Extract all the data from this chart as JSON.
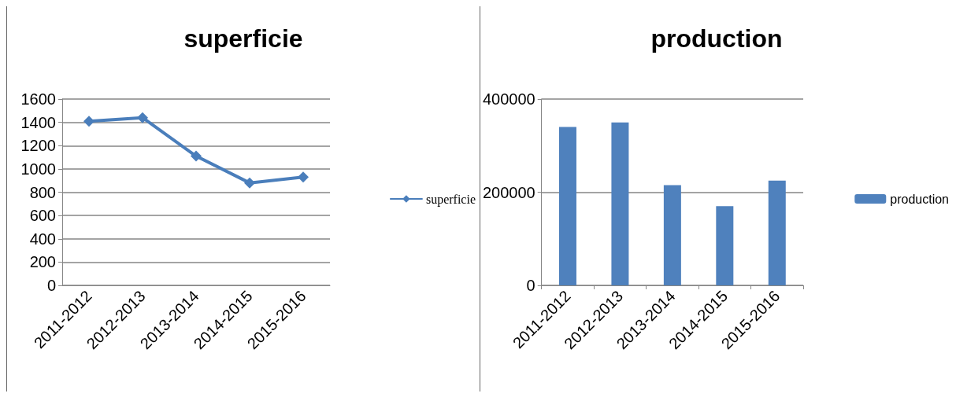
{
  "chart_data": [
    {
      "type": "line",
      "title": "superficie",
      "categories": [
        "2011-2012",
        "2012-2013",
        "2013-2014",
        "2014-2015",
        "2015-2016"
      ],
      "series": [
        {
          "name": "superficie",
          "color": "#4a7ebb",
          "values": [
            1410,
            1440,
            1110,
            880,
            930
          ]
        }
      ],
      "ylim": [
        0,
        1600
      ],
      "yticks": [
        0,
        200,
        400,
        600,
        800,
        1000,
        1200,
        1400,
        1600
      ],
      "grid": "y",
      "legend": "right",
      "marker": "diamond",
      "line_style": "solid"
    },
    {
      "type": "bar",
      "title": "production",
      "categories": [
        "2011-2012",
        "2012-2013",
        "2013-2014",
        "2014-2015",
        "2015-2016"
      ],
      "series": [
        {
          "name": "production",
          "color": "#4f81bd",
          "values": [
            340000,
            350000,
            215000,
            170000,
            225000
          ]
        }
      ],
      "ylim": [
        0,
        400000
      ],
      "yticks": [
        0,
        200000,
        400000
      ],
      "grid": "y",
      "legend": "right"
    }
  ]
}
